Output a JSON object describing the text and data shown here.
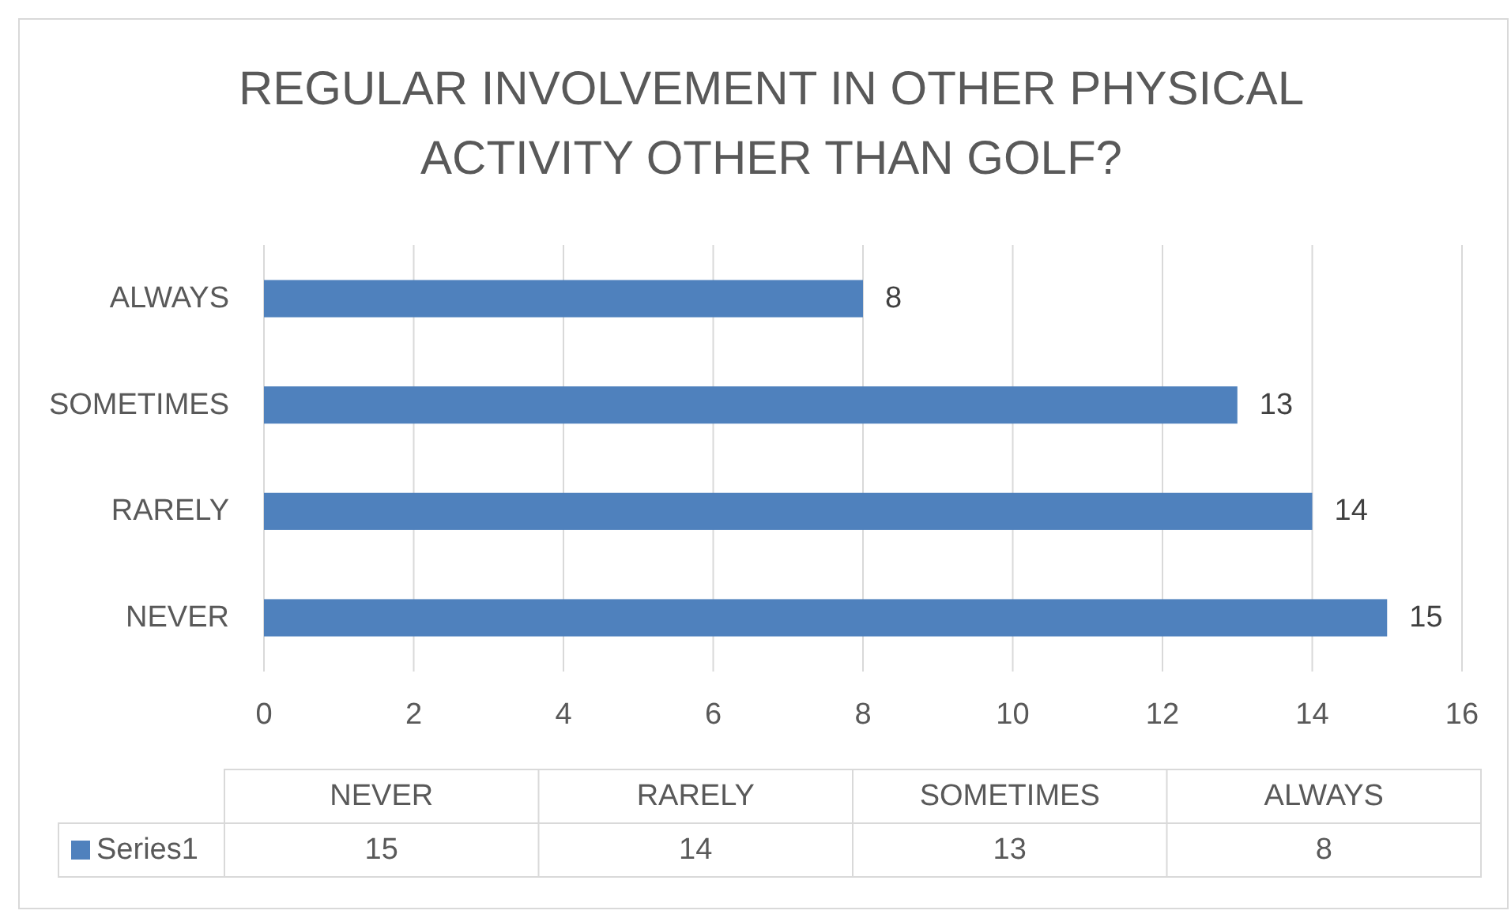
{
  "chart_data": [
    {
      "type": "bar",
      "orientation": "horizontal",
      "title": "REGULAR INVOLVEMENT IN OTHER PHYSICAL ACTIVITY OTHER THAN GOLF?",
      "categories": [
        "ALWAYS",
        "SOMETIMES",
        "RARELY",
        "NEVER"
      ],
      "series": [
        {
          "color": "#4f81bd",
          "values": [
            8,
            13,
            14,
            15
          ]
        }
      ],
      "xlim": [
        0,
        16
      ],
      "xticks": [
        0,
        2,
        4,
        6,
        8,
        10,
        12,
        14,
        16
      ],
      "grid": "x",
      "data_labels": true
    },
    {
      "type": "other",
      "categories": [
        "NEVER",
        "RARELY",
        "SOMETIMES",
        "ALWAYS"
      ],
      "series": [
        {
          "name": "Series1",
          "color": "#4f81bd",
          "values": [
            15,
            14,
            13,
            8
          ]
        }
      ],
      "data_labels": true
    }
  ]
}
